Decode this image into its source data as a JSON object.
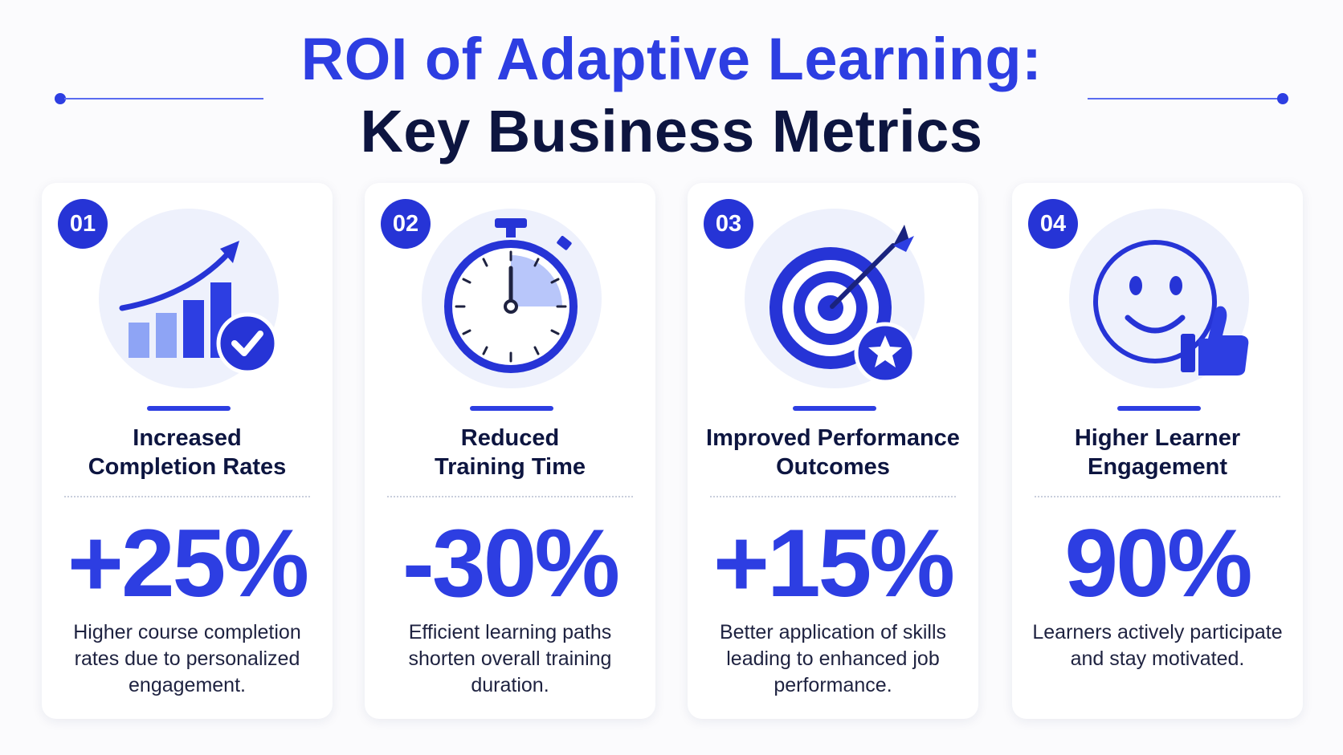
{
  "header": {
    "title_line1": "ROI of Adaptive Learning:",
    "title_line2": "Key Business Metrics"
  },
  "colors": {
    "accent": "#2d3ee2",
    "dark_text": "#0d1540",
    "light_accent": "#8ea4f5",
    "icon_background": "#eef1fc"
  },
  "cards": [
    {
      "number": "01",
      "icon": "bar-chart-check-icon",
      "title_line1": "Increased",
      "title_line2": "Completion Rates",
      "metric": "+25%",
      "description": "Higher course completion rates due to personalized engagement."
    },
    {
      "number": "02",
      "icon": "stopwatch-icon",
      "title_line1": "Reduced",
      "title_line2": "Training Time",
      "metric": "-30%",
      "description": "Efficient learning paths shorten overall training duration."
    },
    {
      "number": "03",
      "icon": "target-star-icon",
      "title_line1": "Improved Performance",
      "title_line2": "Outcomes",
      "metric": "+15%",
      "description": "Better application of skills leading to enhanced job performance."
    },
    {
      "number": "04",
      "icon": "smiley-thumbs-up-icon",
      "title_line1": "Higher Learner",
      "title_line2": "Engagement",
      "metric": "90%",
      "description": "Learners actively participate and stay motivated."
    }
  ]
}
